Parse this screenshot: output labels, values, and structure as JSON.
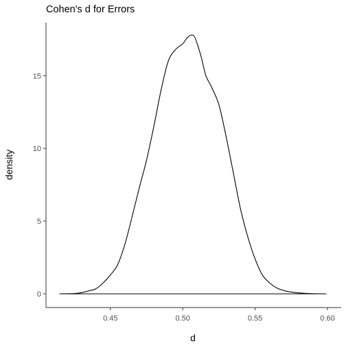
{
  "chart_data": {
    "type": "area",
    "title": "Cohen's d for Errors",
    "xlabel": "d",
    "ylabel": "density",
    "xlim": [
      0.415,
      0.6
    ],
    "ylim": [
      0,
      17.8
    ],
    "x_ticks": [
      0.45,
      0.5,
      0.55,
      0.6
    ],
    "x_tick_labels": [
      "0.45",
      "0.50",
      "0.55",
      "0.60"
    ],
    "y_ticks": [
      0,
      5,
      10,
      15
    ],
    "y_tick_labels": [
      "0",
      "5",
      "10",
      "15"
    ],
    "grid": false,
    "legend": "none",
    "line_color": "#000000",
    "fill": "none",
    "series": [
      {
        "x": [
          0.415,
          0.425,
          0.43,
          0.435,
          0.44,
          0.445,
          0.45,
          0.455,
          0.46,
          0.465,
          0.47,
          0.475,
          0.48,
          0.485,
          0.49,
          0.495,
          0.5,
          0.503,
          0.506,
          0.508,
          0.51,
          0.513,
          0.516,
          0.52,
          0.525,
          0.53,
          0.535,
          0.54,
          0.545,
          0.55,
          0.555,
          0.56,
          0.565,
          0.57,
          0.575,
          0.58,
          0.585,
          0.59,
          0.599
        ],
        "y": [
          0,
          0.02,
          0.08,
          0.2,
          0.35,
          0.75,
          1.3,
          2.0,
          3.4,
          5.3,
          7.3,
          9.2,
          11.5,
          14.0,
          16.0,
          16.8,
          17.2,
          17.6,
          17.8,
          17.7,
          17.2,
          16.2,
          15.0,
          14.2,
          13.0,
          10.8,
          8.3,
          5.8,
          3.9,
          2.4,
          1.3,
          0.75,
          0.4,
          0.22,
          0.12,
          0.06,
          0.03,
          0.01,
          0
        ]
      }
    ]
  }
}
